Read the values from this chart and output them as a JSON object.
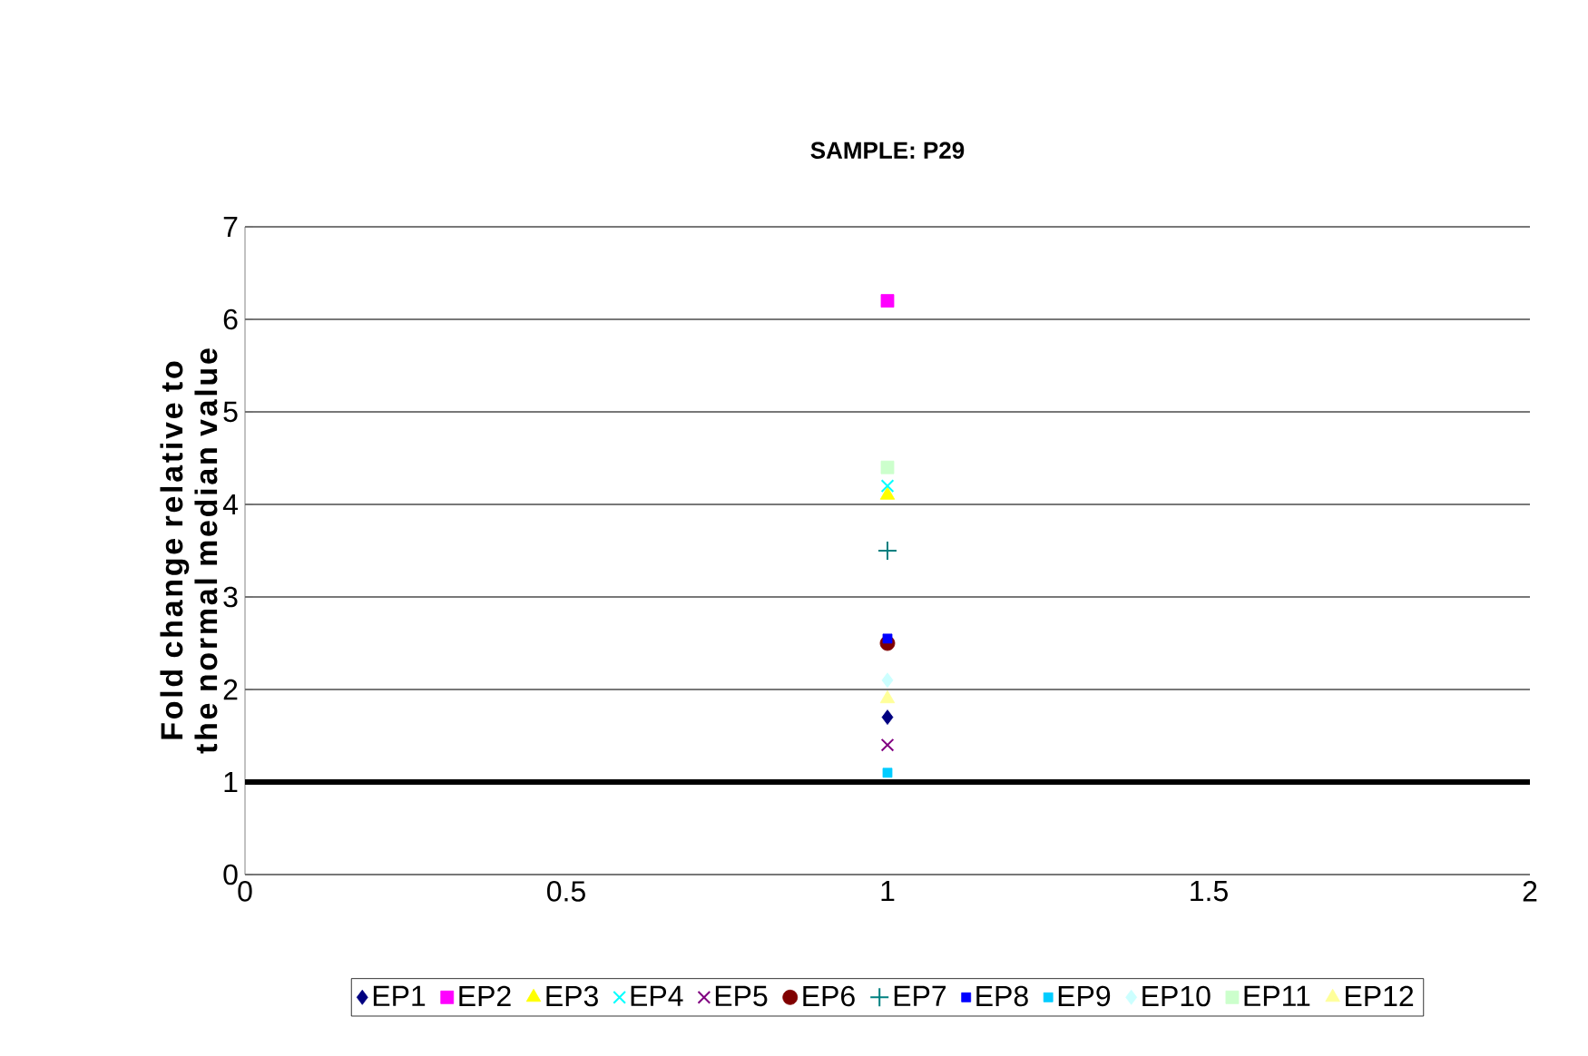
{
  "chart_data": {
    "type": "scatter",
    "title": "SAMPLE: P29",
    "ylabel": "Fold change relative to the normal median value",
    "x": [
      1
    ],
    "xlim": [
      0,
      2
    ],
    "xticks": [
      0,
      0.5,
      1,
      1.5,
      2
    ],
    "ylim": [
      0,
      7
    ],
    "yticks": [
      0,
      1,
      2,
      3,
      4,
      5,
      6,
      7
    ],
    "grid": "y",
    "legend": "bottom",
    "ref_lines": [
      {
        "axis": "y",
        "value": 1,
        "color": "#000000"
      }
    ],
    "series": [
      {
        "name": "EP1",
        "color": "#000080",
        "marker": "diamond",
        "values": [
          1.7
        ]
      },
      {
        "name": "EP2",
        "color": "#ff00ff",
        "marker": "square",
        "values": [
          6.2
        ]
      },
      {
        "name": "EP3",
        "color": "#ffff00",
        "marker": "triangle",
        "values": [
          4.1
        ]
      },
      {
        "name": "EP4",
        "color": "#00ffff",
        "marker": "cross",
        "values": [
          4.2
        ]
      },
      {
        "name": "EP5",
        "color": "#800080",
        "marker": "cross",
        "values": [
          1.4
        ]
      },
      {
        "name": "EP6",
        "color": "#800000",
        "marker": "circle",
        "values": [
          2.5
        ]
      },
      {
        "name": "EP7",
        "color": "#008080",
        "marker": "plus",
        "values": [
          3.5
        ]
      },
      {
        "name": "EP8",
        "color": "#0000ff",
        "values": [
          2.55
        ]
      },
      {
        "name": "EP9",
        "color": "#00ccff",
        "values": [
          1.1
        ]
      },
      {
        "name": "EP10",
        "color": "#ccffff",
        "marker": "diamond",
        "values": [
          2.1
        ]
      },
      {
        "name": "EP11",
        "color": "#ccffcc",
        "marker": "square",
        "values": [
          4.4
        ]
      },
      {
        "name": "EP12",
        "color": "#ffff99",
        "marker": "triangle",
        "values": [
          1.9
        ]
      }
    ]
  }
}
